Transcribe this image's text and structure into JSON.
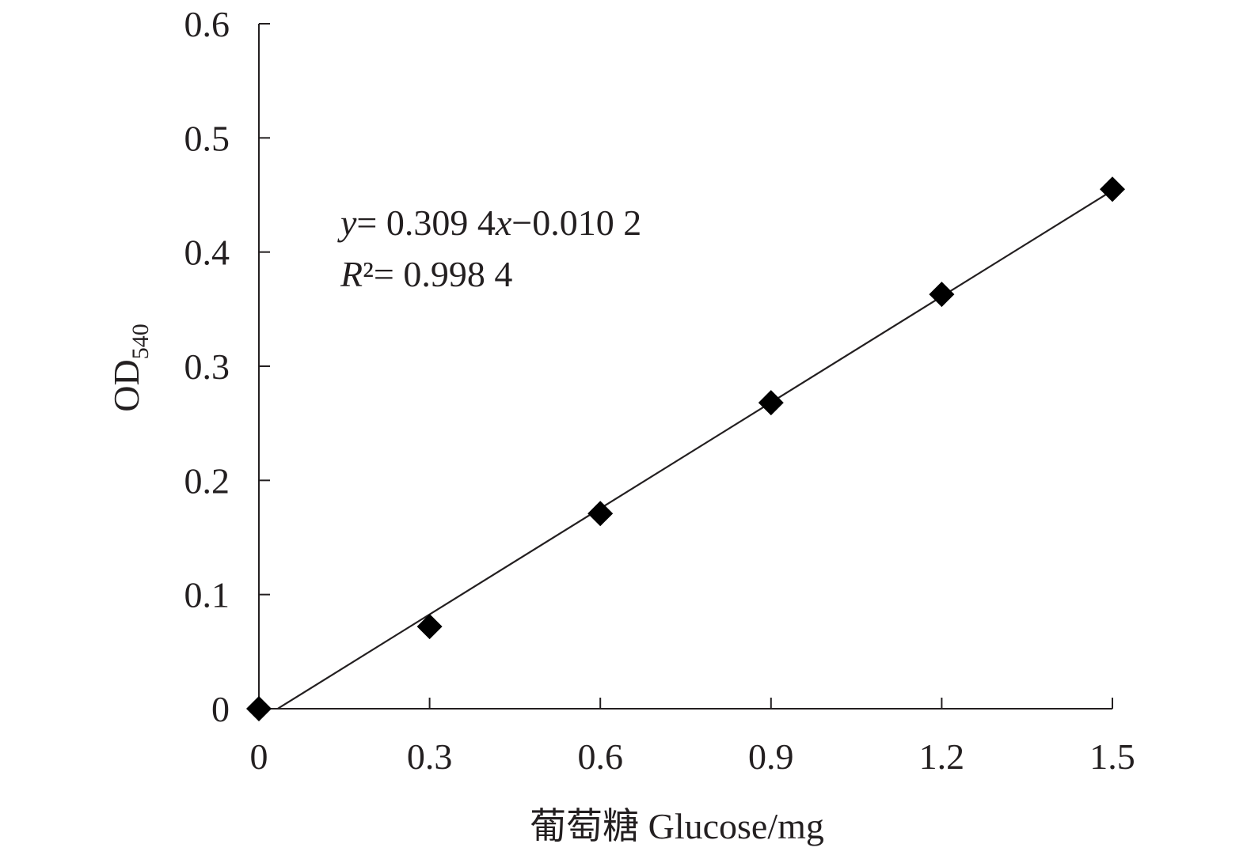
{
  "chart_data": {
    "type": "scatter",
    "x": [
      0,
      0.3,
      0.6,
      0.9,
      1.2,
      1.5
    ],
    "y": [
      0.0,
      0.072,
      0.171,
      0.268,
      0.363,
      0.455
    ],
    "xlim": [
      0,
      1.5
    ],
    "ylim": [
      0,
      0.6
    ],
    "xticks": [
      "0",
      "0.3",
      "0.6",
      "0.9",
      "1.2",
      "1.5"
    ],
    "yticks": [
      "0",
      "0.1",
      "0.2",
      "0.3",
      "0.4",
      "0.5",
      "0.6"
    ],
    "xlabel": "葡萄糖 Glucose/mg",
    "ylabel": "OD",
    "ylabel_subscript": "540",
    "trendline": {
      "slope": 0.3094,
      "intercept": -0.0102,
      "equation_var_y": "y",
      "equation_rhs_a": "= 0.309 4",
      "equation_var_x": "x",
      "equation_rhs_b": "−0.010 2",
      "r2_var": "R",
      "r2_rest": "²= 0.998 4"
    },
    "marker": "diamond",
    "color": "#000000",
    "grid": false
  }
}
